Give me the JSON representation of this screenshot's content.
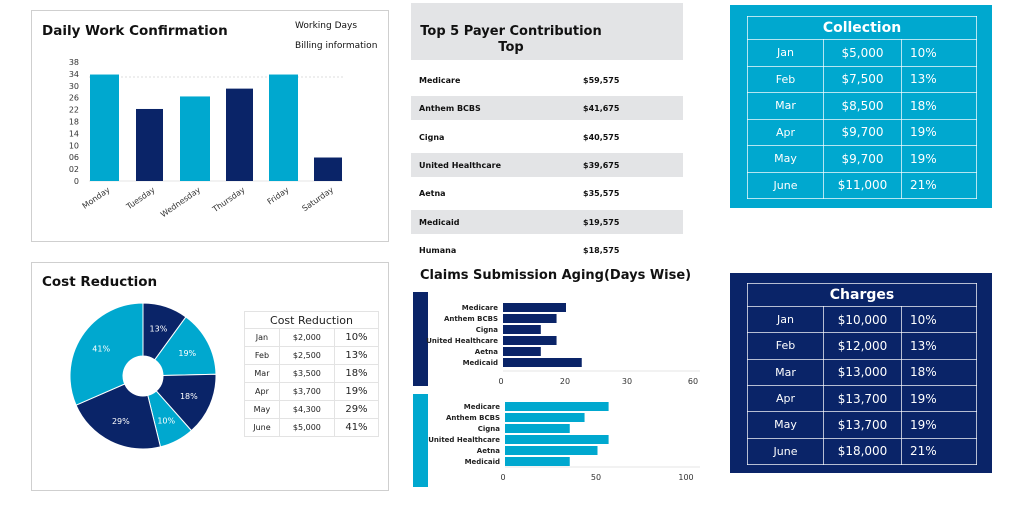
{
  "colors": {
    "cyan": "#00a8cf",
    "navy": "#0a2468",
    "gray": "#e3e4e6"
  },
  "daily": {
    "title": "Daily Work Confirmation",
    "legend": [
      "Working Days",
      "Billing information"
    ]
  },
  "top5": {
    "title_line1": "Top 5 Payer Contribution",
    "title_line2": "Top",
    "rows": [
      {
        "name": "Medicare",
        "value": "$59,575"
      },
      {
        "name": "Anthem BCBS",
        "value": "$41,675"
      },
      {
        "name": "Cigna",
        "value": "$40,575"
      },
      {
        "name": "United Healthcare",
        "value": "$39,675"
      },
      {
        "name": "Aetna",
        "value": "$35,575"
      },
      {
        "name": "Medicaid",
        "value": "$19,575"
      },
      {
        "name": "Humana",
        "value": "$18,575"
      }
    ]
  },
  "collection": {
    "title": "Collection",
    "rows": [
      [
        "Jan",
        "$5,000",
        "10%"
      ],
      [
        "Feb",
        "$7,500",
        "13%"
      ],
      [
        "Mar",
        "$8,500",
        "18%"
      ],
      [
        "Apr",
        "$9,700",
        "19%"
      ],
      [
        "May",
        "$9,700",
        "19%"
      ],
      [
        "June",
        "$11,000",
        "21%"
      ]
    ]
  },
  "charges": {
    "title": "Charges",
    "rows": [
      [
        "Jan",
        "$10,000",
        "10%"
      ],
      [
        "Feb",
        "$12,000",
        "13%"
      ],
      [
        "Mar",
        "$13,000",
        "18%"
      ],
      [
        "Apr",
        "$13,700",
        "19%"
      ],
      [
        "May",
        "$13,700",
        "19%"
      ],
      [
        "June",
        "$18,000",
        "21%"
      ]
    ]
  },
  "cost": {
    "title": "Cost Reduction",
    "table_title": "Cost Reduction",
    "rows": [
      [
        "Jan",
        "$2,000",
        "10%"
      ],
      [
        "Feb",
        "$2,500",
        "13%"
      ],
      [
        "Mar",
        "$3,500",
        "18%"
      ],
      [
        "Apr",
        "$3,700",
        "19%"
      ],
      [
        "May",
        "$4,300",
        "29%"
      ],
      [
        "June",
        "$5,000",
        "41%"
      ]
    ]
  },
  "claims": {
    "title": "Claims Submission Aging(Days Wise)"
  },
  "chart_data": [
    {
      "type": "bar",
      "title": "Daily Work Confirmation",
      "categories": [
        "Monday",
        "Tuesday",
        "Wednesday",
        "Thursday",
        "Friday",
        "Saturday"
      ],
      "values": [
        34,
        23,
        27,
        29.5,
        34,
        7.5
      ],
      "colors": [
        "#00a8cf",
        "#0a2468",
        "#00a8cf",
        "#0a2468",
        "#00a8cf",
        "#0a2468"
      ],
      "yticks": [
        "0",
        "02",
        "06",
        "10",
        "14",
        "18",
        "22",
        "26",
        "30",
        "34",
        "38"
      ],
      "ylim": [
        0,
        38
      ],
      "legend": [
        "Working Days",
        "Billing information"
      ]
    },
    {
      "type": "pie",
      "title": "Cost Reduction",
      "donut": true,
      "labels": [
        "13%",
        "19%",
        "18%",
        "10%",
        "29%",
        "41%"
      ],
      "values": [
        13,
        19,
        18,
        10,
        29,
        41
      ],
      "colors": [
        "#0a2468",
        "#00a8cf",
        "#0a2468",
        "#00a8cf",
        "#0a2468",
        "#00a8cf"
      ]
    },
    {
      "type": "bar",
      "orientation": "horizontal",
      "title": "Claims Submission Aging(Days Wise)",
      "categories": [
        "Medicare",
        "Anthem BCBS",
        "Cigna",
        "United Healthcare",
        "Aetna",
        "Medicaid"
      ],
      "values": [
        20,
        17,
        12,
        17,
        12,
        25
      ],
      "color": "#0a2468",
      "xticks": [
        "0",
        "20",
        "30",
        "60"
      ]
    },
    {
      "type": "bar",
      "orientation": "horizontal",
      "categories": [
        "Medicare",
        "Anthem BCBS",
        "Cigna",
        "United Healthcare",
        "Aetna",
        "Medicaid"
      ],
      "values": [
        56,
        43,
        35,
        56,
        50,
        35
      ],
      "color": "#00a8cf",
      "xticks": [
        "0",
        "50",
        "100"
      ],
      "xlim": [
        0,
        100
      ]
    }
  ]
}
